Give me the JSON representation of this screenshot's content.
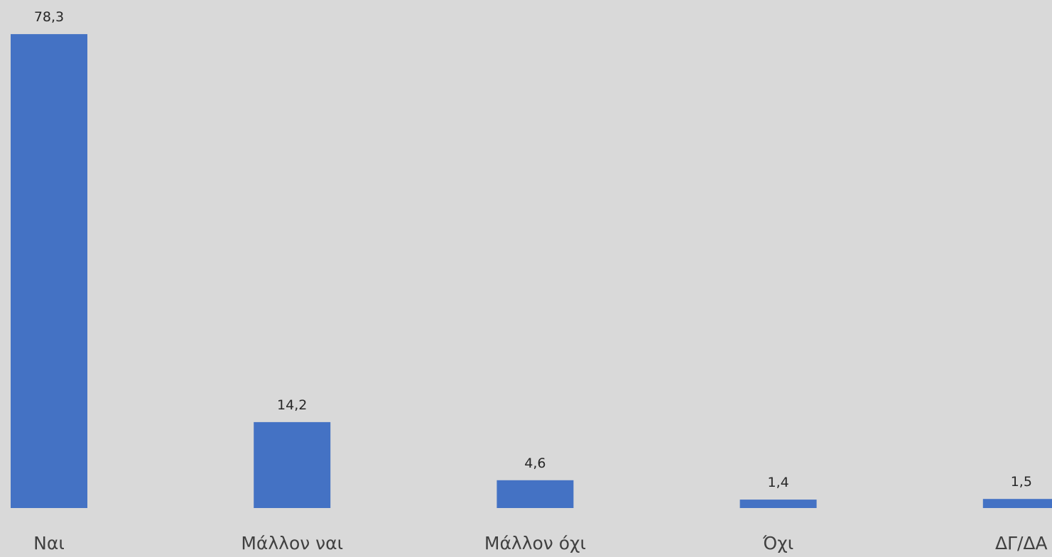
{
  "chart_data": {
    "type": "bar",
    "categories": [
      "Ναι",
      "Μάλλον ναι",
      "Μάλλον όχι",
      "Όχι",
      "ΔΓ/ΔΑ"
    ],
    "values": [
      78.3,
      14.2,
      4.6,
      1.4,
      1.5
    ],
    "value_labels": [
      "78,3",
      "14,2",
      "4,6",
      "1,4",
      "1,5"
    ],
    "title": "",
    "xlabel": "",
    "ylabel": "",
    "ylim": [
      0,
      80
    ],
    "grid": false,
    "legend": "none",
    "colors": {
      "bar": "#4472c4",
      "background": "#d9d9d9"
    }
  }
}
